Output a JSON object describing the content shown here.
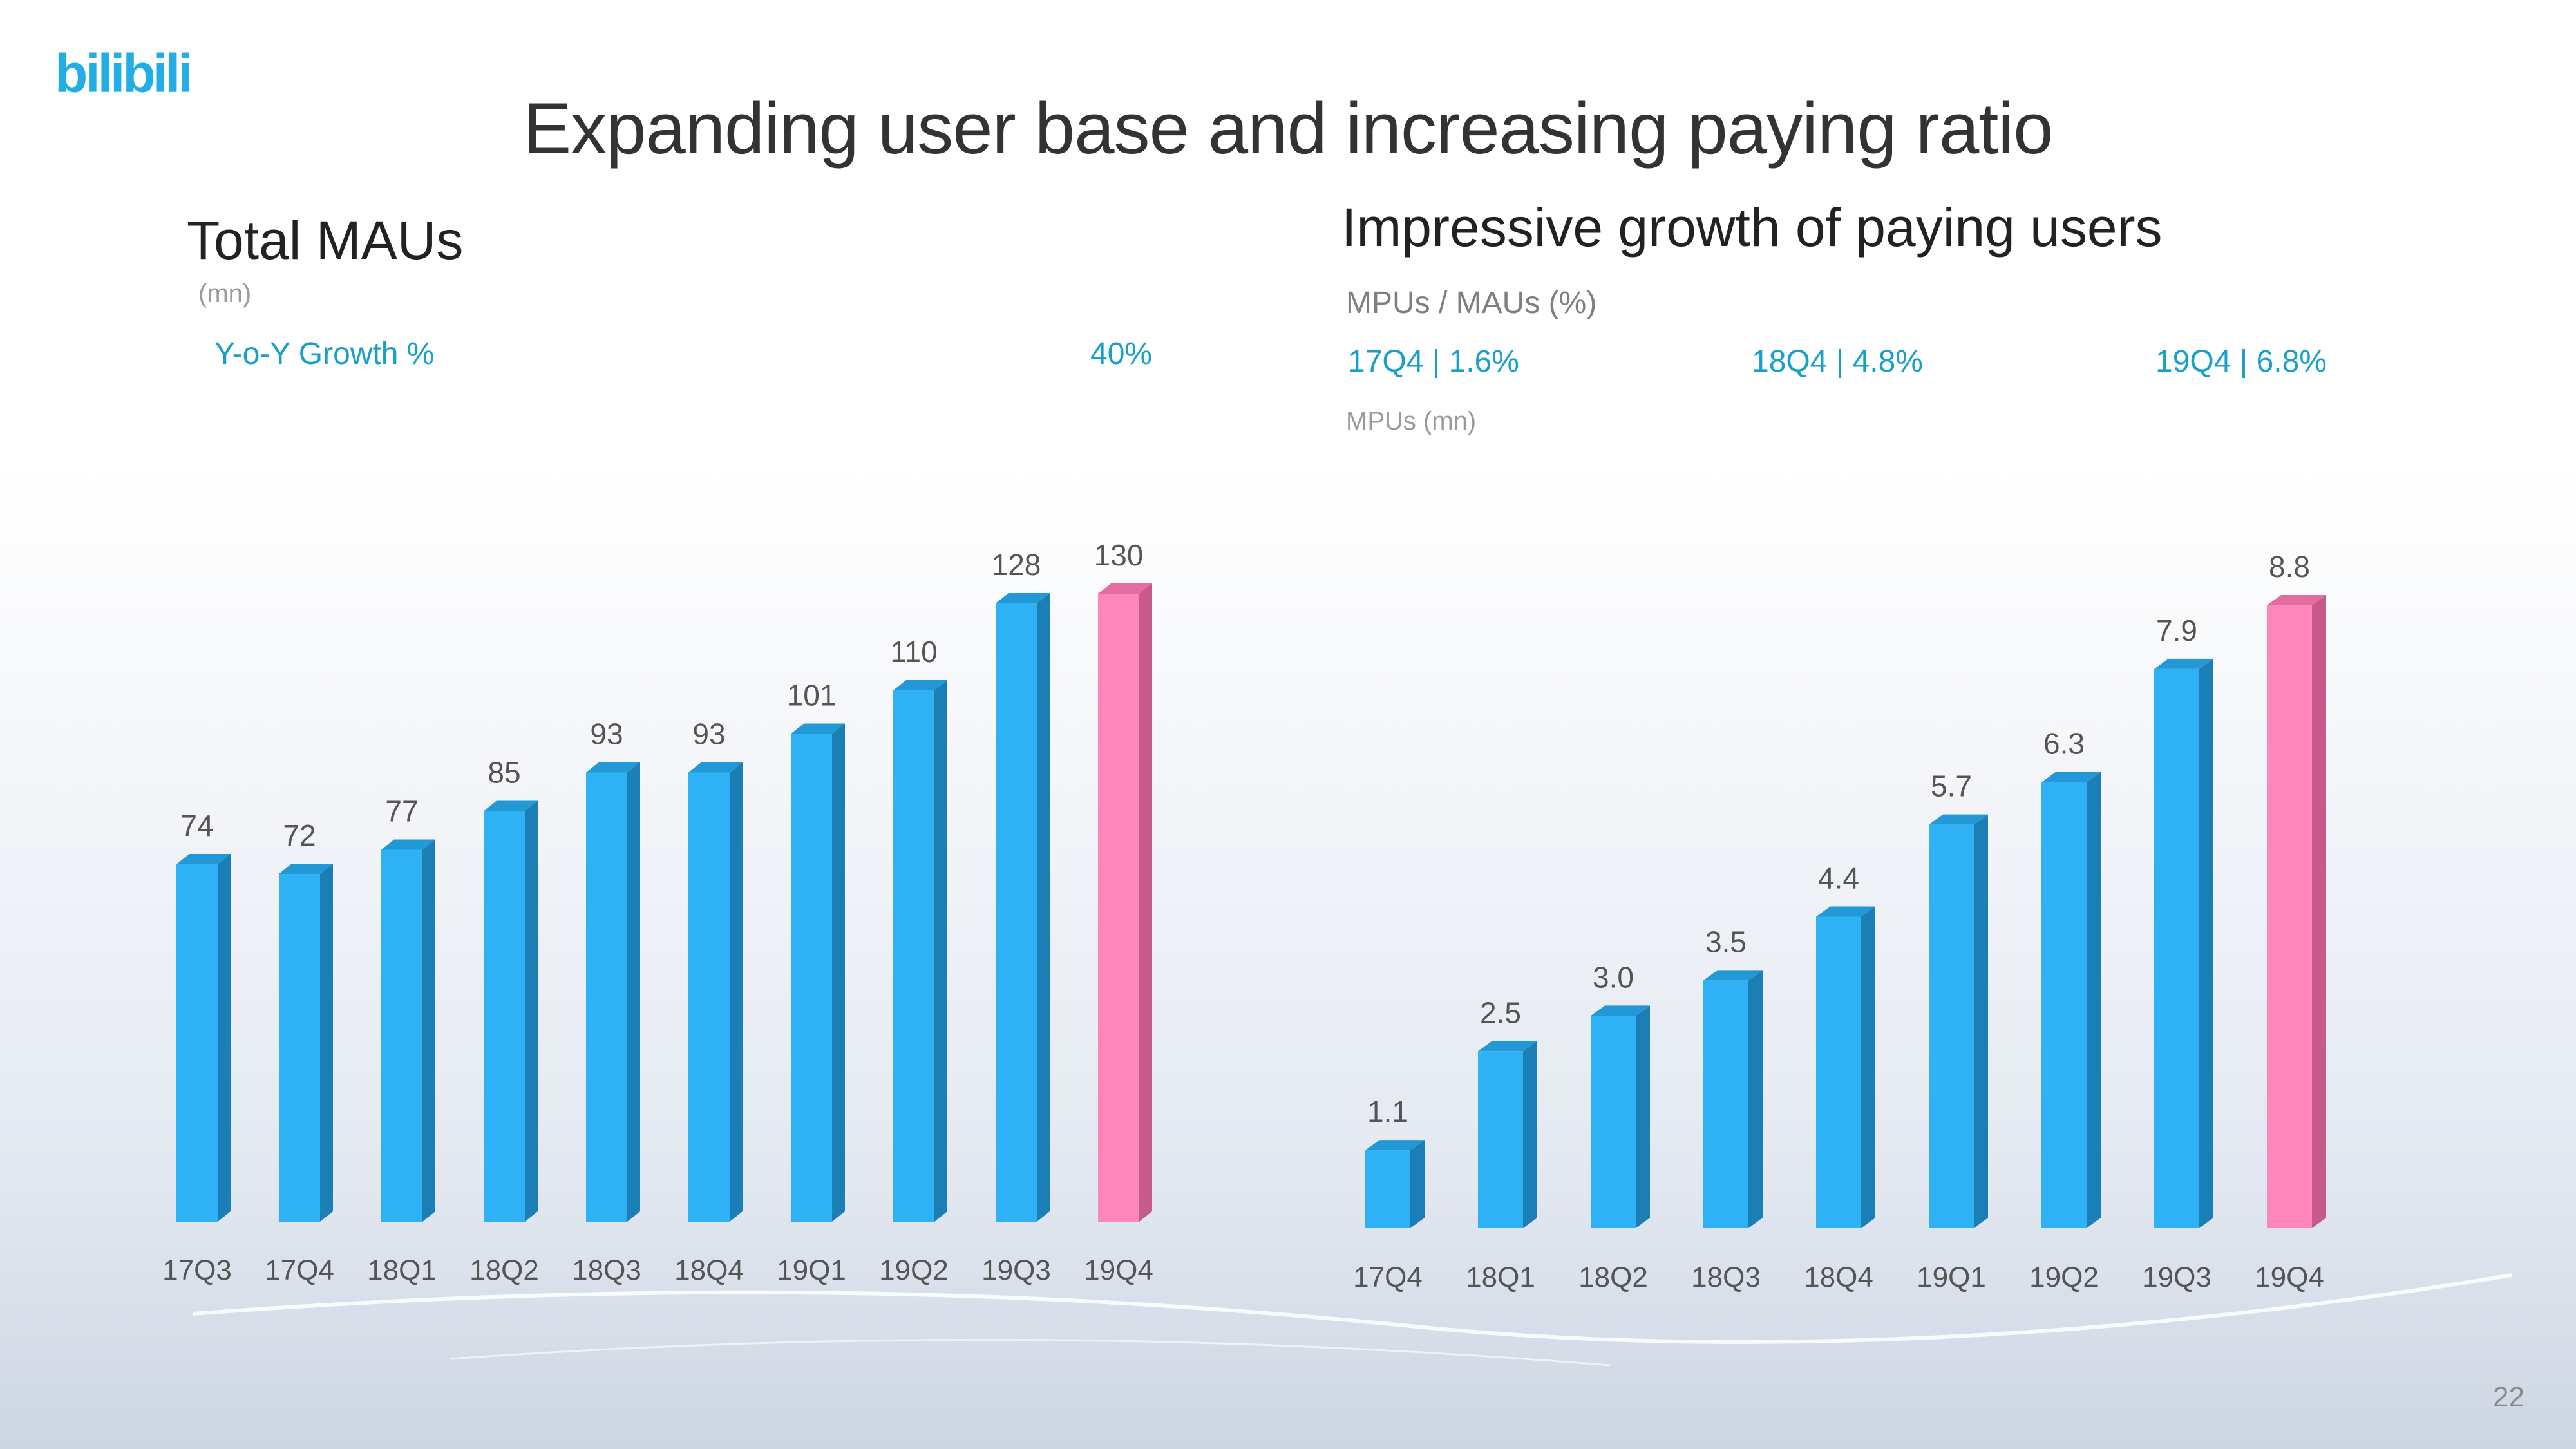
{
  "logo": {
    "text": "bilibili",
    "color": "#23ade5"
  },
  "title": "Expanding user base and increasing paying ratio",
  "left": {
    "heading": "Total MAUs",
    "unit": "(mn)",
    "growth_label": "Y-o-Y Growth %",
    "growth_value": "40%"
  },
  "right": {
    "heading": "Impressive growth of paying users",
    "ratio_label": "MPUs / MAUs (%)",
    "ratios": [
      "17Q4 | 1.6%",
      "18Q4 | 4.8%",
      "19Q4 | 6.8%"
    ],
    "unit": "MPUs (mn)"
  },
  "page_number": "22",
  "colors": {
    "blue": "#2eb2f5",
    "pink": "#ff86b8",
    "accent_text": "#1a9fc9"
  },
  "chart_data": [
    {
      "type": "bar",
      "title": "Total MAUs",
      "ylabel": "(mn)",
      "categories": [
        "17Q3",
        "17Q4",
        "18Q1",
        "18Q2",
        "18Q3",
        "18Q4",
        "19Q1",
        "19Q2",
        "19Q3",
        "19Q4"
      ],
      "values": [
        74,
        72,
        77,
        85,
        93,
        93,
        101,
        110,
        128,
        130
      ],
      "labels": [
        "74",
        "72",
        "77",
        "85",
        "93",
        "93",
        "101",
        "110",
        "128",
        "130"
      ],
      "highlight_index": 9,
      "ylim": [
        0,
        130
      ]
    },
    {
      "type": "bar",
      "title": "Impressive growth of paying users",
      "ylabel": "MPUs (mn)",
      "categories": [
        "17Q4",
        "18Q1",
        "18Q2",
        "18Q3",
        "18Q4",
        "19Q1",
        "19Q2",
        "19Q3",
        "19Q4"
      ],
      "values": [
        1.1,
        2.5,
        3.0,
        3.5,
        4.4,
        5.7,
        6.3,
        7.9,
        8.8
      ],
      "labels": [
        "1.1",
        "2.5",
        "3.0",
        "3.5",
        "4.4",
        "5.7",
        "6.3",
        "7.9",
        "8.8"
      ],
      "highlight_index": 8,
      "ylim": [
        0,
        8.8
      ]
    }
  ]
}
